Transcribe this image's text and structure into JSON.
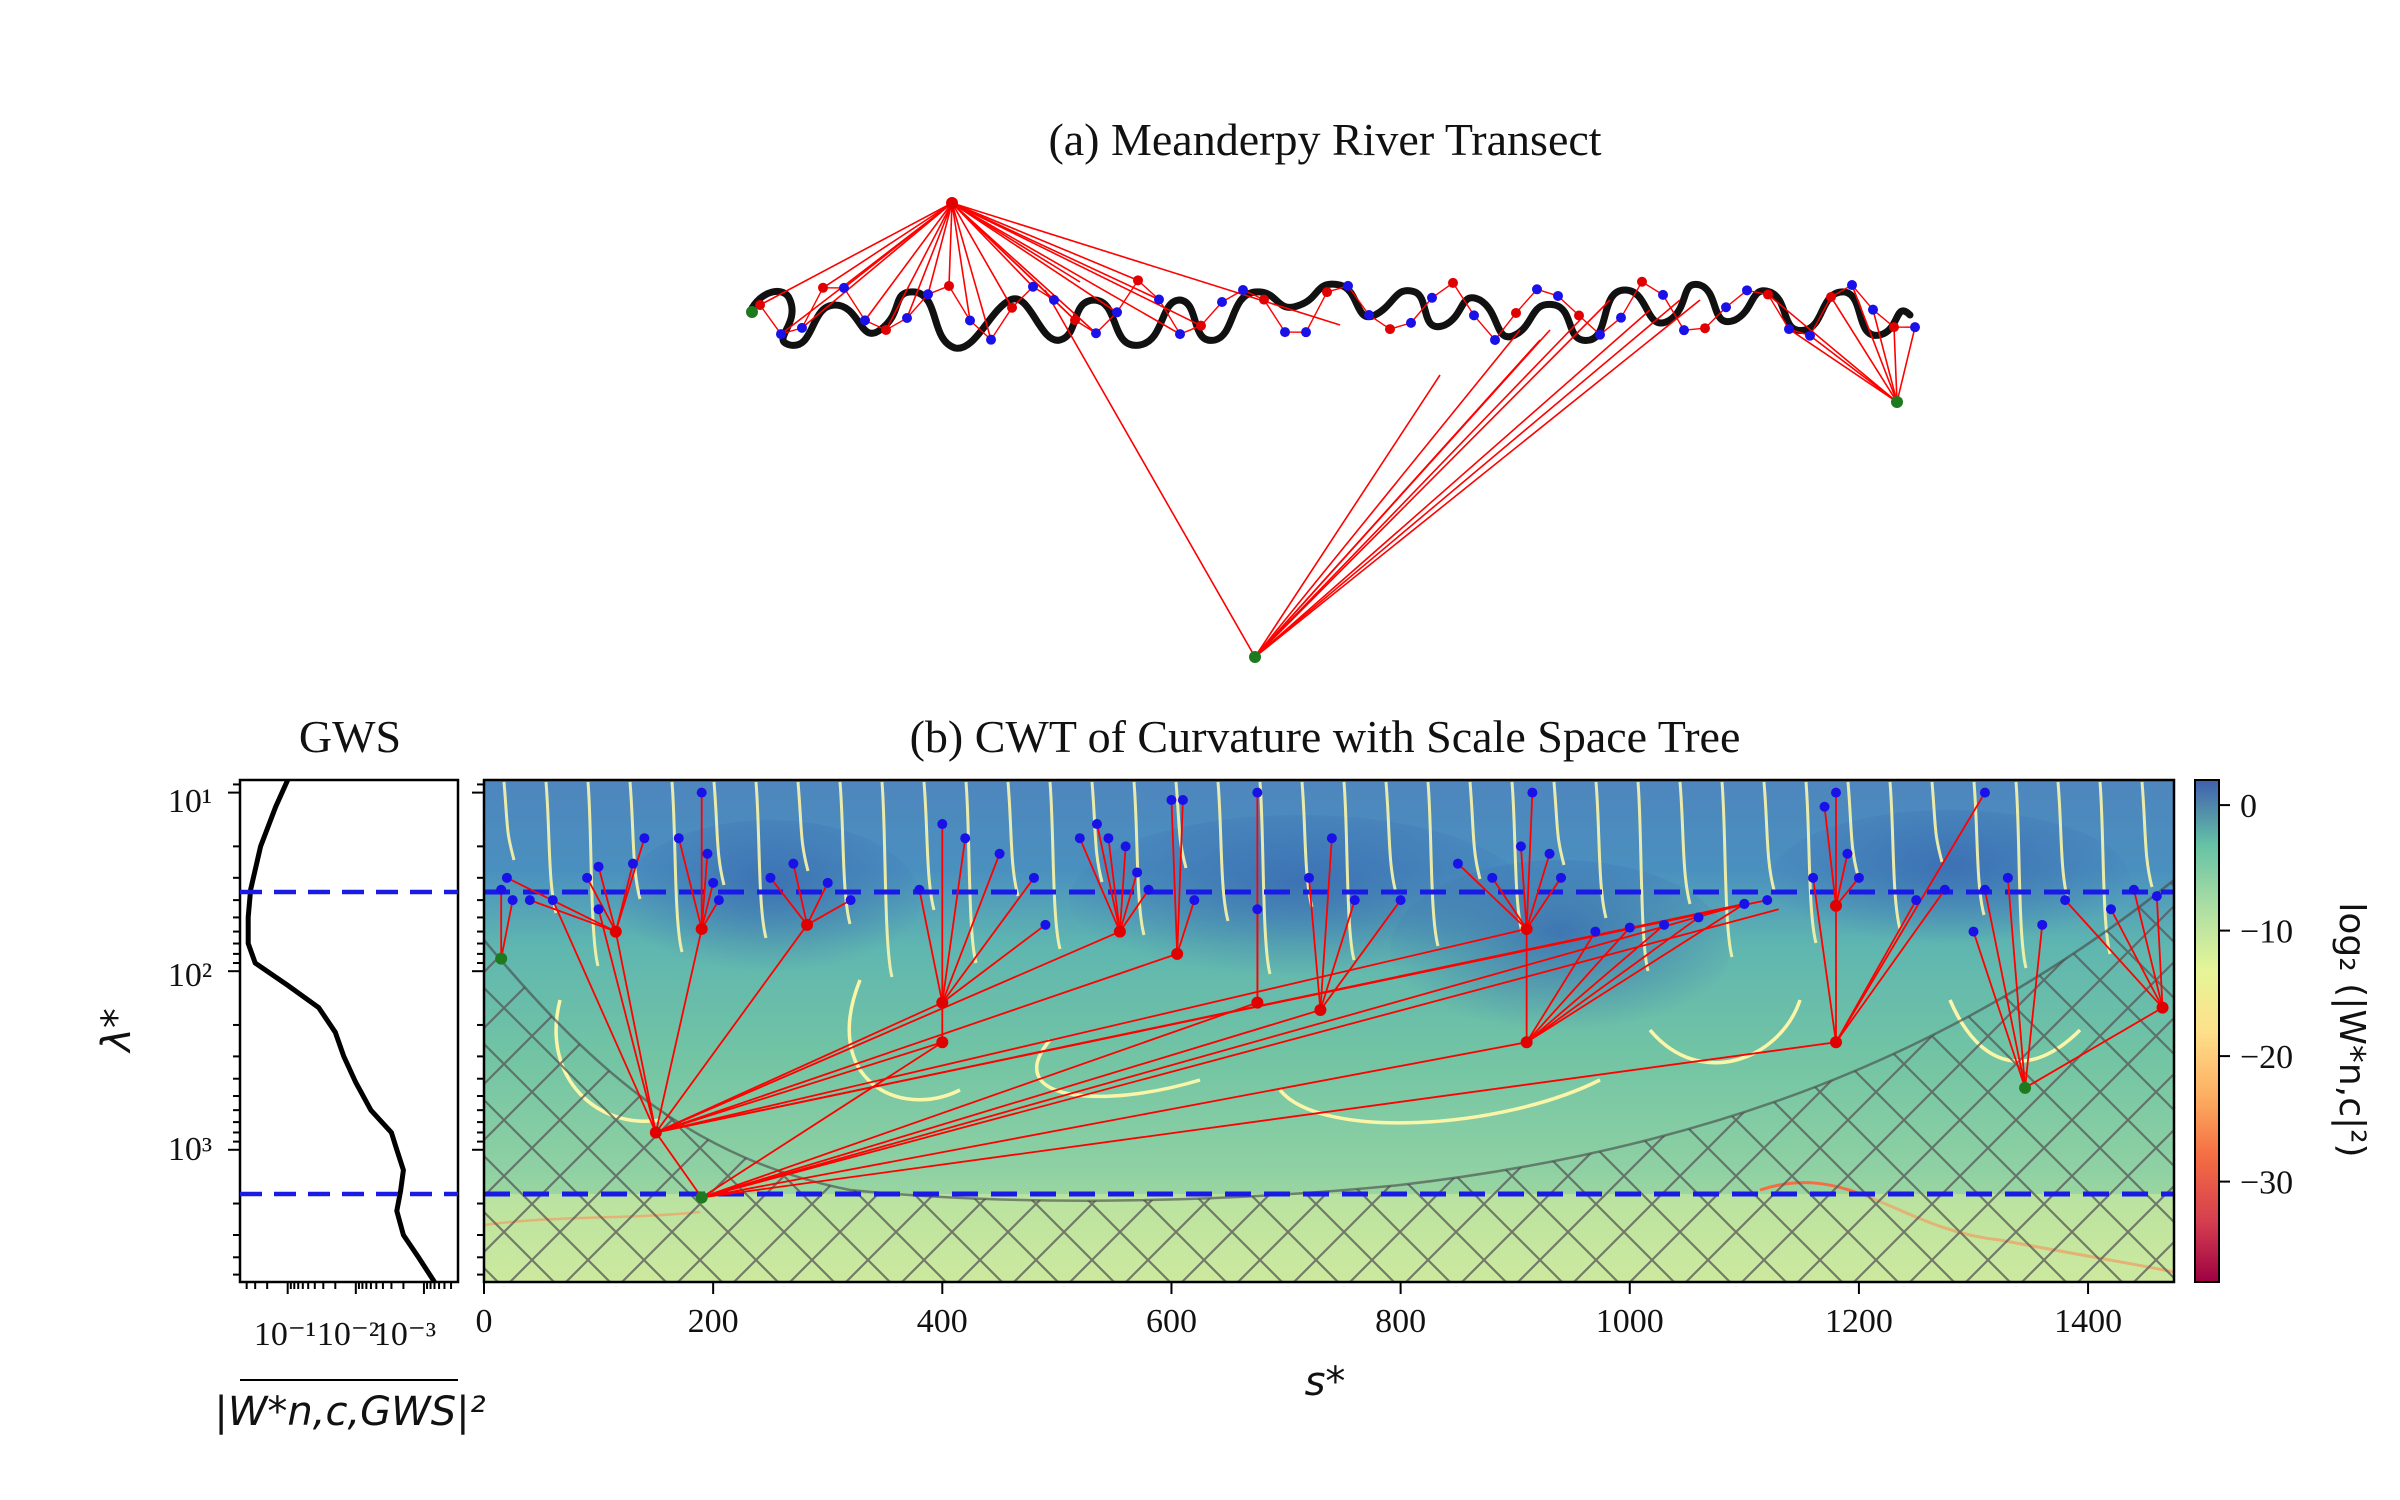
{
  "figure": {
    "panel_a_title": "(a) Meanderpy River Transect",
    "panel_b_title": "(b) CWT of Curvature with Scale Space Tree",
    "gws_title": "GWS",
    "gws_xlabel": "|W*n,c,GWS|²",
    "gws_xticks": [
      "10⁻¹",
      "10⁻²",
      "10⁻³"
    ],
    "lambda_ticks": [
      "10¹",
      "10²",
      "10³"
    ],
    "s_label": "s*",
    "lambda_label": "λ*",
    "colorbar_label": "log₂ (|W*n,c|²)",
    "colorbar_ticks": [
      "0",
      "−10",
      "−20",
      "−30"
    ]
  },
  "colors": {
    "river": "#111111",
    "tree_lines": "#ff0000",
    "tree_nodes": "#e00000",
    "leaf_nodes": "#1a10e8",
    "root_nodes": "#1e7a1e",
    "dashed_lines": "#1a1ae6",
    "colormap": "Spectral",
    "hatch": "#555555"
  },
  "chart_data": [
    {
      "type": "line",
      "title": "GWS",
      "xscale": "log",
      "xaxis": "reversed",
      "yscale": "log",
      "yaxis": "reversed",
      "ylim": [
        8.5,
        5500
      ],
      "xlabel": "|W*n,c,GWS|²",
      "ylabel": "λ*",
      "series": [
        {
          "lambda": [
            8.5,
            12,
            20,
            35,
            50,
            70,
            90,
            120,
            160,
            220,
            300,
            420,
            600,
            800,
            1000,
            1300,
            1700,
            2200,
            3000,
            4000,
            5500
          ],
          "power": [
            0.1,
            0.15,
            0.25,
            0.35,
            0.38,
            0.38,
            0.3,
            0.1,
            0.035,
            0.02,
            0.015,
            0.01,
            0.006,
            0.003,
            0.0025,
            0.002,
            0.0022,
            0.0025,
            0.002,
            0.0012,
            0.0007
          ]
        }
      ],
      "hlines": [
        35,
        1850
      ]
    },
    {
      "type": "heatmap",
      "title": "(b) CWT of Curvature with Scale Space Tree",
      "xlabel": "s*",
      "ylabel": "λ*",
      "xlim": [
        0,
        1475
      ],
      "xticks": [
        0,
        200,
        400,
        600,
        800,
        1000,
        1200,
        1400
      ],
      "yscale": "log",
      "ylim": [
        8.5,
        5500
      ],
      "colorbar_range": [
        -38,
        2
      ],
      "colorbar_ticks": [
        0,
        -10,
        -20,
        -30
      ],
      "hlines": [
        35,
        1850
      ],
      "roots": [
        [
          15,
          85
        ],
        [
          190,
          1850
        ],
        [
          1345,
          450
        ]
      ],
      "internal_nodes": [
        [
          150,
          800
        ],
        [
          400,
          250
        ],
        [
          400,
          150
        ],
        [
          605,
          80
        ],
        [
          675,
          150
        ],
        [
          730,
          165
        ],
        [
          910,
          250
        ],
        [
          1180,
          250
        ],
        [
          1465,
          160
        ],
        [
          115,
          60
        ],
        [
          190,
          58
        ],
        [
          282,
          55
        ],
        [
          555,
          60
        ],
        [
          910,
          58
        ],
        [
          1180,
          43
        ]
      ]
    },
    {
      "type": "scatter",
      "title": "(a) Meanderpy River Transect",
      "note_points": "planform centerline with leaf (blue), internal (red) and root (green) nodes"
    }
  ]
}
